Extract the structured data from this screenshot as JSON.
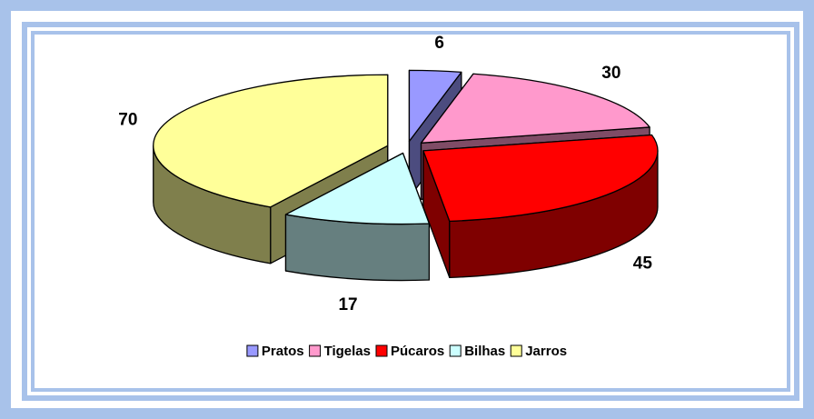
{
  "chart_data": {
    "type": "pie3d",
    "categories": [
      "Pratos",
      "Tigelas",
      "Púcaros",
      "Bilhas",
      "Jarros"
    ],
    "values": [
      6,
      30,
      45,
      17,
      70
    ],
    "colors": [
      "#9999ff",
      "#ff99cc",
      "#ff0000",
      "#ccffff",
      "#ffff99"
    ],
    "legend": "bottom"
  }
}
